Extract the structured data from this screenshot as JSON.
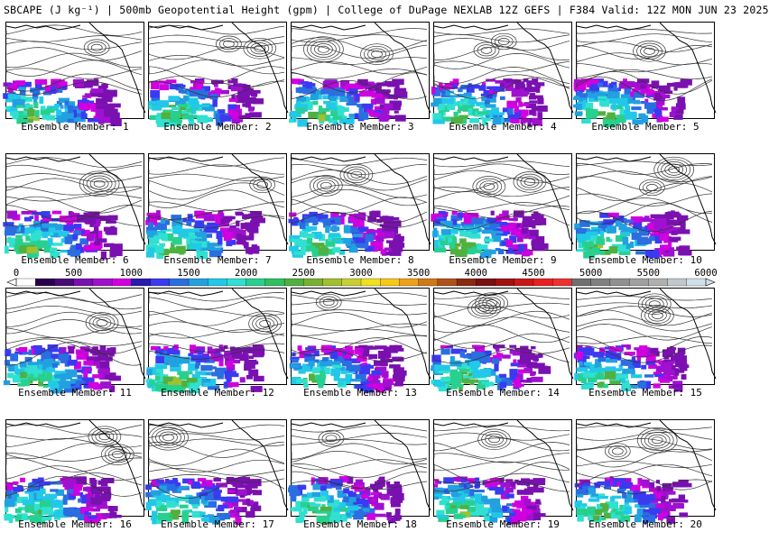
{
  "header": {
    "title": "SBCAPE (J kg⁻¹) | 500mb Geopotential Height (gpm) | College of DuPage NEXLAB 12Z GEFS | F384 Valid: 12Z MON JUN 23 2025"
  },
  "colorbar": {
    "tick_labels": [
      "0",
      "500",
      "1000",
      "1500",
      "2000",
      "2500",
      "3000",
      "3500",
      "4000",
      "4500",
      "5000",
      "5500",
      "6000"
    ],
    "colors": [
      "#ffffff",
      "#2a004a",
      "#4a0a78",
      "#7a10b0",
      "#a010d0",
      "#d000e0",
      "#2a1ab0",
      "#3a3af0",
      "#2a6ee0",
      "#22a0e0",
      "#22c8e8",
      "#30e0d0",
      "#28d090",
      "#30c060",
      "#50b040",
      "#78b030",
      "#a0c030",
      "#c8d030",
      "#f0e020",
      "#f8c818",
      "#f0a018",
      "#d07818",
      "#b05018",
      "#8a2a10",
      "#7a1010",
      "#a01010",
      "#c81818",
      "#e82020",
      "#f03030",
      "#707070",
      "#808080",
      "#909090",
      "#a0a0a0",
      "#b0b0b0",
      "#c0c8cc",
      "#d0e0e8"
    ]
  },
  "panels": [
    {
      "label": "Ensemble Member: 1"
    },
    {
      "label": "Ensemble Member: 2"
    },
    {
      "label": "Ensemble Member: 3"
    },
    {
      "label": "Ensemble Member: 4"
    },
    {
      "label": "Ensemble Member: 5"
    },
    {
      "label": "Ensemble Member: 6"
    },
    {
      "label": "Ensemble Member: 7"
    },
    {
      "label": "Ensemble Member: 8"
    },
    {
      "label": "Ensemble Member: 9"
    },
    {
      "label": "Ensemble Member: 10"
    },
    {
      "label": "Ensemble Member: 11"
    },
    {
      "label": "Ensemble Member: 12"
    },
    {
      "label": "Ensemble Member: 13"
    },
    {
      "label": "Ensemble Member: 14"
    },
    {
      "label": "Ensemble Member: 15"
    },
    {
      "label": "Ensemble Member: 16"
    },
    {
      "label": "Ensemble Member: 17"
    },
    {
      "label": "Ensemble Member: 18"
    },
    {
      "label": "Ensemble Member: 19"
    },
    {
      "label": "Ensemble Member: 20"
    }
  ]
}
